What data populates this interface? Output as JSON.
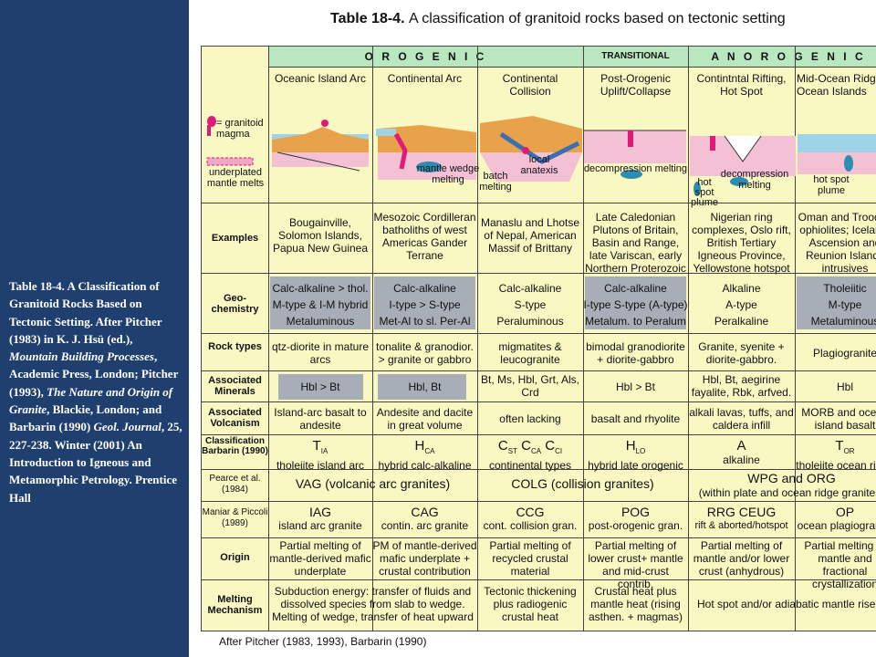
{
  "caption": {
    "l1": "Table 18-4. A Classification of Granitoid Rocks Based on Tectonic Setting. After Pitcher (1983) in K. J. Hsü (ed.),",
    "l2": "Mountain Building Processes",
    "l3": ", Academic Press, London; Pitcher (1993),",
    "l4": "The Nature and Origin of Granite",
    "l5": ", Blackie, London; and Barbarin (1990)",
    "l6": "Geol. Journal",
    "l7": ", 25, 227-238. Winter (2001) An Introduction to Igneous and Metamorphic Petrology. Prentice Hall"
  },
  "title": {
    "bold": "Table 18-4.",
    "rest": "A classification of granitoid rocks based on tectonic setting"
  },
  "credit": "After Pitcher (1983, 1993), Barbarin (1990)",
  "groups": {
    "orogenic": "O R O G E N I C",
    "transitional": "TRANSITIONAL",
    "anorogenic": "A N O R O G E N I C"
  },
  "columns": [
    "Oceanic Island Arc",
    "Continental Arc",
    "Continental Collision",
    "Post-Orogenic Uplift/Collapse",
    "Contintntal Rifting, Hot Spot",
    "Mid-Ocean Ridge, Ocean Islands"
  ],
  "legend": {
    "magma": "= granitoid magma",
    "underplated": "underplated mantle melts"
  },
  "diagram_labels": {
    "c2": "mantle wedge melting",
    "c3a": "local anatexis",
    "c3b": "batch melting",
    "c4": "decompression melting",
    "c5a": "hot spot plume",
    "c5b": "decompression melting",
    "c6": "hot spot plume"
  },
  "rows": {
    "examples": {
      "label": "Examples",
      "cells": [
        "Bougainville, Solomon Islands, Papua New Guinea",
        "Mesozoic Cordilleran batholiths of west Americas Gander Terrane",
        "Manaslu and Lhotse of Nepal, American Massif of Brittany",
        "Late Caledonian Plutons of Britain, Basin and Range, late Variscan, early Northern Proterozoic",
        "Nigerian ring complexes, Oslo rift, British Tertiary Igneous Province, Yellowstone hotspot",
        "Oman and Troodos ophiolites; Iceland, Ascension and Reunion Islands intrusives"
      ]
    },
    "geochem": {
      "label": "Geo-chemistry",
      "cells": [
        [
          "Calc-alkaline > thol.",
          "M-type & I-M hybrid",
          "Metaluminous"
        ],
        [
          "Calc-alkaline",
          "I-type > S-type",
          "Met-Al to sl. Per-Al"
        ],
        [
          "Calc-alkaline",
          "S-type",
          "Peraluminous"
        ],
        [
          "Calc-alkaline",
          "I-type S-type (A-type)",
          "Metalum. to Peralum"
        ],
        [
          "Alkaline",
          "A-type",
          "Peralkaline"
        ],
        [
          "Tholeiitic",
          "M-type",
          "Metaluminous"
        ]
      ]
    },
    "rocktypes": {
      "label": "Rock types",
      "cells": [
        "qtz-diorite in mature arcs",
        "tonalite & granodior. > granite or gabbro",
        "migmatites & leucogranite",
        "bimodal granodiorite + diorite-gabbro",
        "Granite, syenite + diorite-gabbro.",
        "Plagiogranite"
      ]
    },
    "minerals": {
      "label": "Associated Minerals",
      "cells": [
        "Hbl > Bt",
        "Hbl, Bt",
        "Bt, Ms, Hbl, Grt, Als, Crd",
        "Hbl > Bt",
        "Hbl, Bt, aegirine fayalite, Rbk, arfved.",
        "Hbl"
      ]
    },
    "volcanism": {
      "label": "Associated Volcanism",
      "cells": [
        "Island-arc basalt to andesite",
        "Andesite and dacite in great volume",
        "often lacking",
        "basalt and rhyolite",
        "alkali lavas, tuffs, and caldera infill",
        "MORB and ocean island basalt"
      ]
    },
    "barbarin": {
      "label": "Classification Barbarin (1990)",
      "codes": [
        "T",
        "H",
        "C",
        "H",
        "A",
        "T"
      ],
      "subs": [
        "IA",
        "CA",
        "",
        "LO",
        "",
        "OR"
      ],
      "c3codes": [
        "C",
        "ST",
        " C",
        "CA",
        " C",
        "CI"
      ],
      "names": [
        "tholeiite island arc",
        "hybrid calc-alkaline",
        "continental types",
        "hybrid late orogenic",
        "alkaline",
        "tholeiite ocean ridge"
      ]
    },
    "pearce": {
      "label": "Pearce et al. (1984)",
      "vag": "VAG (volcanic arc granites)",
      "colg": "COLG (collision granites)",
      "wpg": "WPG and ORG",
      "wpg2": "(within plate and ocean ridge granites)"
    },
    "maniar": {
      "label": "Maniar & Piccoli (1989)",
      "codes": [
        "IAG",
        "CAG",
        "CCG",
        "POG",
        "RRG  CEUG",
        "OP"
      ],
      "names": [
        "island arc granite",
        "contin. arc granite",
        "cont. collision gran.",
        "post-orogenic gran.",
        "rift & aborted/hotspot",
        "ocean plagiogranite"
      ]
    },
    "origin": {
      "label": "Origin",
      "cells": [
        "Partial melting of mantle-derived mafic underplate",
        "PM of mantle-derived mafic underplate + crustal contribution",
        "Partial melting of recycled crustal material",
        "Partial melting of lower crust+ mantle and mid-crust contrib.",
        "Partial melting of mantle and/or lower crust (anhydrous)",
        "Partial melting of mantle and fractional crystallization"
      ]
    },
    "melting": {
      "label": "Melting Mechanism",
      "c12": "Subduction energy: transfer of fluids and dissolved species from slab to wedge. Melting of wedge, transfer of heat upward",
      "c3": "Tectonic thickening plus radiogenic crustal heat",
      "c4": "Crustal heat plus mantle heat (rising asthen. + magmas)",
      "c56": "Hot spot and/or adiabatic mantle rise"
    }
  }
}
